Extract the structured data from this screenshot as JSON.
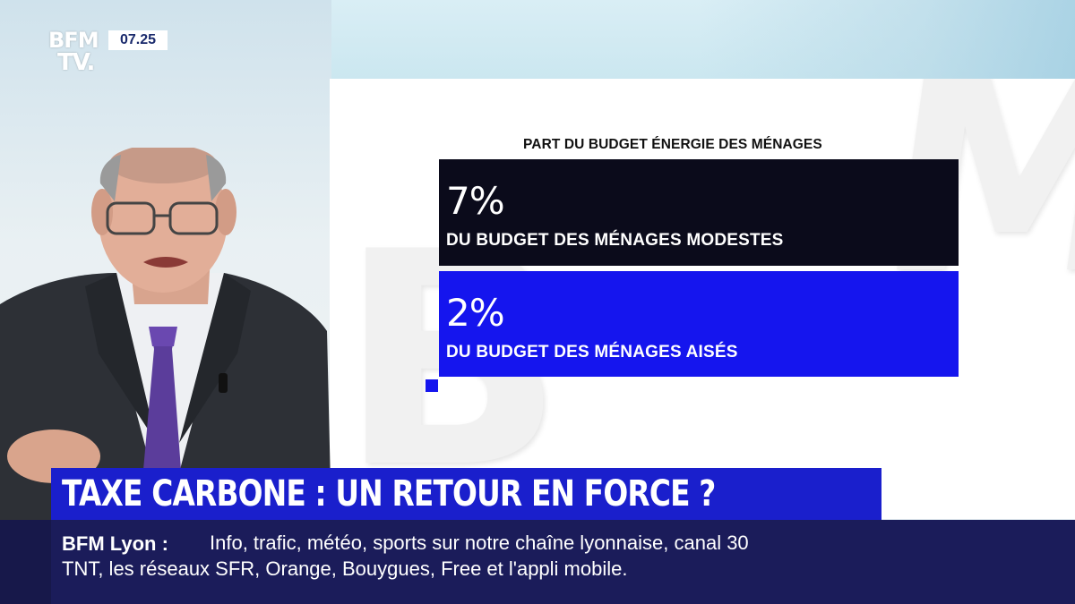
{
  "channel": {
    "logo_top": "BFM",
    "logo_bottom": "TV.",
    "clock": "07.25"
  },
  "infographic": {
    "title": "PART DU BUDGET ÉNERGIE DES MÉNAGES",
    "stats": [
      {
        "percent": "7%",
        "label": "DU BUDGET DES MÉNAGES MODESTES",
        "color": "#0b0b1b"
      },
      {
        "percent": "2%",
        "label": "DU BUDGET DES MÉNAGES AISÉS",
        "color": "#1515ee"
      }
    ]
  },
  "headline": {
    "text": "TAXE CARBONE : UN RETOUR EN FORCE ?",
    "color": "#1a1fcc"
  },
  "ticker": {
    "source": "BFM Lyon :",
    "line1": "Info, trafic, météo, sports sur notre chaîne lyonnaise, canal 30",
    "line2": "TNT, les réseaux SFR, Orange, Bouygues, Free et l'appli mobile."
  }
}
